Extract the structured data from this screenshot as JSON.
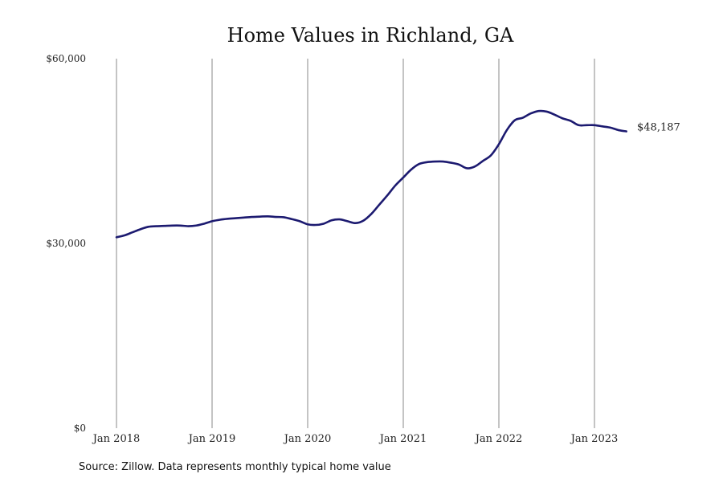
{
  "chart_data": {
    "type": "line",
    "title": "Home Values in Richland, GA",
    "xlabel": "",
    "ylabel": "",
    "ylim": [
      0,
      60000
    ],
    "y_ticks": [
      {
        "value": 0,
        "label": "$0"
      },
      {
        "value": 30000,
        "label": "$30,000"
      },
      {
        "value": 60000,
        "label": "$60,000"
      }
    ],
    "x_ticks": [
      {
        "date": "2018-01",
        "label": "Jan 2018"
      },
      {
        "date": "2019-01",
        "label": "Jan 2019"
      },
      {
        "date": "2020-01",
        "label": "Jan 2020"
      },
      {
        "date": "2021-01",
        "label": "Jan 2021"
      },
      {
        "date": "2022-01",
        "label": "Jan 2022"
      },
      {
        "date": "2023-01",
        "label": "Jan 2023"
      }
    ],
    "x_range": [
      "2018-01",
      "2023-05"
    ],
    "grid": "vertical",
    "line_color": "#1c1a70",
    "series": [
      {
        "name": "",
        "x": [
          "2018-01",
          "2018-02",
          "2018-03",
          "2018-04",
          "2018-05",
          "2018-06",
          "2018-07",
          "2018-08",
          "2018-09",
          "2018-10",
          "2018-11",
          "2018-12",
          "2019-01",
          "2019-02",
          "2019-03",
          "2019-04",
          "2019-05",
          "2019-06",
          "2019-07",
          "2019-08",
          "2019-09",
          "2019-10",
          "2019-11",
          "2019-12",
          "2020-01",
          "2020-02",
          "2020-03",
          "2020-04",
          "2020-05",
          "2020-06",
          "2020-07",
          "2020-08",
          "2020-09",
          "2020-10",
          "2020-11",
          "2020-12",
          "2021-01",
          "2021-02",
          "2021-03",
          "2021-04",
          "2021-05",
          "2021-06",
          "2021-07",
          "2021-08",
          "2021-09",
          "2021-10",
          "2021-11",
          "2021-12",
          "2022-01",
          "2022-02",
          "2022-03",
          "2022-04",
          "2022-05",
          "2022-06",
          "2022-07",
          "2022-08",
          "2022-09",
          "2022-10",
          "2022-11",
          "2022-12",
          "2023-01",
          "2023-02",
          "2023-03",
          "2023-04",
          "2023-05"
        ],
        "values": [
          31000,
          31300,
          31800,
          32300,
          32700,
          32800,
          32850,
          32900,
          32900,
          32800,
          32900,
          33200,
          33600,
          33850,
          34000,
          34100,
          34200,
          34300,
          34350,
          34400,
          34300,
          34250,
          33950,
          33600,
          33100,
          33000,
          33200,
          33750,
          33900,
          33600,
          33300,
          33700,
          34800,
          36300,
          37800,
          39400,
          40700,
          42000,
          42900,
          43200,
          43300,
          43300,
          43100,
          42800,
          42200,
          42500,
          43400,
          44300,
          46100,
          48400,
          50000,
          50400,
          51100,
          51500,
          51400,
          50900,
          50300,
          49900,
          49200,
          49200,
          49200,
          49000,
          48800,
          48400,
          48187
        ]
      }
    ],
    "end_label": "$48,187",
    "source": "Source: Zillow. Data represents monthly typical home value"
  }
}
